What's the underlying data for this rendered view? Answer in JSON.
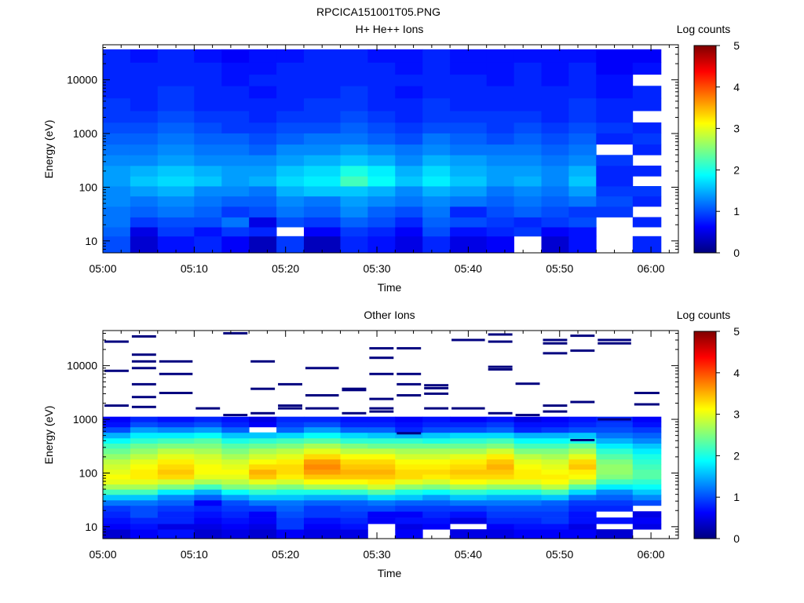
{
  "figure": {
    "title": "RPCICA151001T05.PNG"
  },
  "colormap": [
    "#00007f",
    "#0000ff",
    "#007fff",
    "#00ffff",
    "#7fff7f",
    "#ffff00",
    "#ff7f00",
    "#ff0000",
    "#7f0000"
  ],
  "chart_data": [
    {
      "type": "heatmap",
      "title": "H+ He++ Ions",
      "xlabel": "Time",
      "ylabel": "Energy (eV)",
      "yscale": "log",
      "ylim": [
        6,
        45000
      ],
      "xlim": [
        "05:00",
        "06:03"
      ],
      "x_ticks": [
        "05:00",
        "05:10",
        "05:20",
        "05:30",
        "05:40",
        "05:50",
        "06:00"
      ],
      "y_ticks": [
        10,
        100,
        1000,
        10000
      ],
      "y_tick_labels": [
        "10",
        "100",
        "1000",
        "10000"
      ],
      "colorbar": {
        "label": "Log counts",
        "range": [
          0,
          5
        ],
        "ticks": [
          "0",
          "1",
          "2",
          "3",
          "4",
          "5"
        ]
      },
      "time_bins": [
        "05:00",
        "05:03",
        "05:06",
        "05:10",
        "05:13",
        "05:16",
        "05:19",
        "05:22",
        "05:26",
        "05:29",
        "05:32",
        "05:35",
        "05:38",
        "05:42",
        "05:45",
        "05:48",
        "05:51",
        "05:54",
        "05:58"
      ],
      "energy_bands": [
        10,
        15,
        22,
        35,
        55,
        85,
        130,
        200,
        320,
        500,
        800,
        1300,
        2000,
        3500,
        6000,
        10000,
        16000,
        28000
      ],
      "log_counts": [
        [
          1.0,
          0.4,
          0.7,
          0.8,
          0.6,
          0.3,
          0.9,
          0.3,
          0.8,
          0.7,
          0.5,
          0.8,
          0.5,
          0.6,
          null,
          0.4,
          0.7,
          null,
          0.8
        ],
        [
          1.1,
          0.5,
          0.9,
          0.7,
          0.9,
          0.8,
          null,
          0.6,
          0.9,
          0.8,
          0.6,
          1.0,
          0.7,
          0.8,
          0.9,
          0.6,
          0.7,
          null,
          null
        ],
        [
          1.2,
          0.9,
          1.0,
          1.0,
          1.2,
          0.5,
          1.0,
          0.9,
          1.1,
          1.0,
          0.8,
          1.1,
          1.0,
          0.9,
          0.8,
          0.9,
          1.0,
          null,
          0.8
        ],
        [
          1.2,
          1.1,
          1.2,
          1.1,
          0.9,
          1.0,
          1.2,
          1.1,
          1.3,
          1.1,
          1.0,
          1.2,
          0.8,
          1.0,
          1.1,
          1.0,
          0.9,
          0.9,
          null
        ],
        [
          1.3,
          1.2,
          1.3,
          1.2,
          1.1,
          1.1,
          1.3,
          1.2,
          1.4,
          1.3,
          1.2,
          1.3,
          1.2,
          1.1,
          1.2,
          1.1,
          1.2,
          1.0,
          0.8
        ],
        [
          1.3,
          1.4,
          1.5,
          1.3,
          1.3,
          1.2,
          1.5,
          1.6,
          1.6,
          1.5,
          1.3,
          1.5,
          1.4,
          1.2,
          1.3,
          1.2,
          1.4,
          0.9,
          0.9
        ],
        [
          1.4,
          1.6,
          1.7,
          1.6,
          1.4,
          1.5,
          1.7,
          1.8,
          2.2,
          1.9,
          1.6,
          1.8,
          1.6,
          1.4,
          1.5,
          1.3,
          1.6,
          0.8,
          null
        ],
        [
          1.4,
          1.5,
          1.6,
          1.5,
          1.4,
          1.4,
          1.6,
          1.7,
          2.0,
          1.8,
          1.5,
          1.7,
          1.5,
          1.4,
          1.4,
          1.3,
          1.5,
          0.8,
          0.8
        ],
        [
          1.3,
          1.3,
          1.4,
          1.3,
          1.3,
          1.3,
          1.4,
          1.5,
          1.6,
          1.5,
          1.3,
          1.5,
          1.4,
          1.3,
          1.3,
          1.2,
          1.3,
          0.9,
          null
        ],
        [
          1.2,
          1.2,
          1.3,
          1.2,
          1.2,
          1.1,
          1.3,
          1.3,
          1.4,
          1.3,
          1.2,
          1.3,
          1.2,
          1.2,
          1.2,
          1.1,
          1.2,
          null,
          0.8
        ],
        [
          1.1,
          1.1,
          1.2,
          1.1,
          1.1,
          1.0,
          1.1,
          1.2,
          1.2,
          1.1,
          1.0,
          1.2,
          1.1,
          1.0,
          1.1,
          1.0,
          1.1,
          0.8,
          0.9
        ],
        [
          1.0,
          1.0,
          1.1,
          1.0,
          0.9,
          0.9,
          1.0,
          1.0,
          1.1,
          1.0,
          0.9,
          1.0,
          1.0,
          0.9,
          1.0,
          0.9,
          1.0,
          0.9,
          0.8
        ],
        [
          0.9,
          0.9,
          1.0,
          0.9,
          0.9,
          0.8,
          0.9,
          0.9,
          1.0,
          0.9,
          0.8,
          0.9,
          0.9,
          0.9,
          0.9,
          0.8,
          0.9,
          0.8,
          null
        ],
        [
          0.9,
          0.8,
          0.9,
          0.8,
          0.8,
          0.8,
          0.8,
          0.9,
          0.9,
          0.8,
          0.8,
          0.9,
          0.8,
          0.8,
          0.8,
          0.8,
          0.9,
          0.8,
          0.8
        ],
        [
          0.8,
          0.8,
          0.9,
          0.8,
          0.8,
          0.7,
          0.8,
          0.8,
          0.9,
          0.8,
          0.7,
          0.8,
          0.8,
          0.8,
          0.8,
          0.8,
          0.8,
          0.7,
          0.8
        ],
        [
          0.8,
          0.8,
          0.8,
          0.8,
          0.7,
          0.8,
          0.8,
          0.8,
          0.8,
          0.8,
          0.8,
          0.8,
          0.8,
          0.7,
          0.8,
          0.7,
          0.8,
          0.7,
          null
        ],
        [
          0.8,
          0.8,
          0.8,
          0.8,
          0.7,
          0.7,
          0.8,
          0.8,
          0.8,
          0.8,
          0.7,
          0.8,
          0.7,
          0.7,
          0.8,
          0.7,
          0.8,
          0.6,
          0.7
        ],
        [
          0.8,
          0.7,
          0.8,
          0.7,
          0.6,
          0.7,
          0.7,
          0.8,
          0.8,
          0.7,
          0.7,
          0.8,
          0.7,
          0.7,
          0.7,
          0.7,
          0.7,
          0.6,
          0.6
        ]
      ]
    },
    {
      "type": "heatmap",
      "title": "Other Ions",
      "xlabel": "Time",
      "ylabel": "Energy (eV)",
      "yscale": "log",
      "ylim": [
        6,
        45000
      ],
      "xlim": [
        "05:00",
        "06:03"
      ],
      "x_ticks": [
        "05:00",
        "05:10",
        "05:20",
        "05:30",
        "05:40",
        "05:50",
        "06:00"
      ],
      "y_ticks": [
        10,
        100,
        1000,
        10000
      ],
      "y_tick_labels": [
        "10",
        "100",
        "1000",
        "10000"
      ],
      "colorbar": {
        "label": "Log counts",
        "range": [
          0,
          5
        ],
        "ticks": [
          "0",
          "1",
          "2",
          "3",
          "4",
          "5"
        ]
      },
      "time_bins": [
        "05:00",
        "05:03",
        "05:06",
        "05:10",
        "05:13",
        "05:16",
        "05:19",
        "05:22",
        "05:26",
        "05:29",
        "05:32",
        "05:35",
        "05:38",
        "05:42",
        "05:45",
        "05:48",
        "05:51",
        "05:54",
        "05:58"
      ],
      "energy_bands": [
        8,
        10,
        13,
        17,
        22,
        28,
        35,
        45,
        55,
        70,
        85,
        105,
        130,
        165,
        200,
        260,
        320,
        400,
        500,
        650,
        800,
        1000
      ],
      "log_counts": [
        [
          0.4,
          0.6,
          0.7,
          0.4,
          0.5,
          0.4,
          0.6,
          0.5,
          0.5,
          null,
          0.6,
          null,
          0.5,
          0.5,
          0.6,
          0.6,
          0.6,
          0.4,
          null
        ],
        [
          0.6,
          0.7,
          0.5,
          0.5,
          0.6,
          0.5,
          0.9,
          0.6,
          0.7,
          null,
          0.5,
          0.6,
          null,
          0.6,
          0.7,
          0.7,
          0.5,
          null,
          0.5
        ],
        [
          0.7,
          0.8,
          0.8,
          0.6,
          0.7,
          0.6,
          0.9,
          0.7,
          0.8,
          0.6,
          0.7,
          0.7,
          0.5,
          0.8,
          0.8,
          0.9,
          0.7,
          0.7,
          0.6
        ],
        [
          0.8,
          1.0,
          0.8,
          0.7,
          0.8,
          0.6,
          1.0,
          0.9,
          0.9,
          0.6,
          0.6,
          0.8,
          0.7,
          0.9,
          0.9,
          0.9,
          0.7,
          null,
          0.5
        ],
        [
          0.9,
          1.0,
          0.9,
          0.8,
          0.9,
          0.9,
          1.1,
          0.9,
          1.0,
          1.0,
          0.9,
          0.9,
          0.9,
          1.0,
          1.0,
          1.0,
          0.8,
          0.8,
          null
        ],
        [
          1.2,
          1.2,
          1.1,
          0.6,
          1.0,
          1.2,
          1.2,
          1.1,
          1.1,
          1.2,
          1.1,
          1.1,
          1.2,
          1.2,
          1.2,
          1.1,
          0.9,
          0.9,
          1.0
        ],
        [
          1.6,
          1.6,
          1.3,
          1.1,
          1.4,
          1.6,
          1.6,
          1.5,
          1.5,
          1.7,
          1.6,
          1.4,
          1.6,
          1.5,
          1.5,
          1.6,
          1.2,
          1.1,
          1.3
        ],
        [
          2.2,
          2.2,
          1.8,
          1.5,
          1.9,
          2.1,
          2.0,
          2.0,
          2.1,
          2.3,
          2.0,
          1.9,
          2.1,
          2.0,
          2.0,
          2.2,
          1.7,
          1.3,
          1.6
        ],
        [
          2.7,
          2.7,
          2.5,
          2.2,
          2.5,
          2.6,
          2.5,
          2.7,
          2.7,
          2.9,
          2.6,
          2.5,
          2.7,
          2.6,
          2.6,
          2.8,
          2.3,
          1.8,
          1.9
        ],
        [
          3.0,
          3.0,
          2.9,
          2.7,
          2.8,
          3.0,
          2.9,
          3.1,
          3.1,
          3.2,
          3.0,
          2.9,
          3.1,
          3.0,
          3.0,
          3.1,
          2.8,
          2.2,
          2.1
        ],
        [
          3.1,
          3.2,
          3.3,
          3.0,
          3.0,
          3.4,
          3.2,
          3.4,
          3.4,
          3.4,
          3.3,
          3.2,
          3.3,
          3.3,
          3.2,
          3.2,
          3.1,
          2.5,
          2.3
        ],
        [
          3.0,
          3.2,
          3.4,
          3.1,
          3.1,
          3.5,
          3.3,
          3.6,
          3.5,
          3.5,
          3.3,
          3.3,
          3.4,
          3.4,
          3.2,
          3.1,
          3.2,
          2.6,
          2.3
        ],
        [
          2.9,
          3.1,
          3.3,
          3.1,
          3.0,
          3.3,
          3.3,
          3.7,
          3.4,
          3.4,
          3.2,
          3.2,
          3.3,
          3.5,
          3.1,
          3.0,
          3.4,
          2.6,
          2.2
        ],
        [
          2.8,
          3.0,
          3.2,
          3.0,
          2.9,
          3.1,
          3.2,
          3.6,
          3.3,
          3.3,
          3.1,
          3.1,
          3.2,
          3.4,
          3.0,
          2.9,
          3.3,
          2.5,
          2.1
        ],
        [
          2.6,
          2.8,
          3.0,
          2.9,
          2.7,
          2.9,
          3.0,
          3.3,
          3.1,
          3.1,
          2.9,
          2.9,
          3.0,
          3.2,
          2.8,
          2.7,
          3.0,
          2.3,
          2.0
        ],
        [
          2.4,
          2.6,
          2.8,
          2.7,
          2.5,
          2.7,
          2.8,
          3.0,
          2.8,
          2.8,
          2.7,
          2.7,
          2.7,
          2.9,
          2.5,
          2.5,
          2.7,
          2.1,
          1.8
        ],
        [
          2.2,
          2.4,
          2.5,
          2.5,
          2.3,
          2.4,
          2.5,
          2.7,
          2.5,
          2.4,
          2.4,
          2.4,
          2.4,
          2.5,
          2.2,
          2.2,
          2.4,
          1.8,
          1.6
        ],
        [
          1.9,
          2.1,
          2.2,
          2.3,
          2.0,
          2.1,
          2.2,
          2.3,
          2.1,
          2.1,
          2.1,
          2.0,
          2.1,
          2.2,
          1.9,
          1.9,
          2.0,
          1.5,
          1.3
        ],
        [
          1.5,
          1.8,
          1.8,
          1.9,
          1.6,
          1.6,
          1.7,
          1.9,
          1.7,
          1.6,
          1.5,
          1.6,
          1.7,
          1.7,
          1.5,
          1.5,
          1.6,
          1.2,
          1.1
        ],
        [
          1.0,
          1.4,
          1.3,
          1.4,
          1.1,
          null,
          1.1,
          1.4,
          1.1,
          1.1,
          0.8,
          1.0,
          1.0,
          1.1,
          0.8,
          0.9,
          1.0,
          1.0,
          0.9
        ],
        [
          0.7,
          1.0,
          0.9,
          1.0,
          0.8,
          0.6,
          0.9,
          1.0,
          0.8,
          0.8,
          0.7,
          0.8,
          0.8,
          0.9,
          0.7,
          0.7,
          0.8,
          0.9,
          0.7
        ],
        [
          0.6,
          0.8,
          0.7,
          0.8,
          0.7,
          0.5,
          0.8,
          0.8,
          0.7,
          0.7,
          0.6,
          0.7,
          0.6,
          0.7,
          0.5,
          0.6,
          0.7,
          0.8,
          0.6
        ]
      ],
      "sparse_lines": [
        {
          "time": "05:00",
          "energies": [
            28000,
            8000,
            1800
          ]
        },
        {
          "time": "05:03",
          "energies": [
            35000,
            16000,
            12000,
            9000,
            4500,
            2600,
            1700
          ]
        },
        {
          "time": "05:06",
          "energies": [
            12000,
            7000,
            3100
          ]
        },
        {
          "time": "05:10",
          "energies": [
            1600
          ]
        },
        {
          "time": "05:13",
          "energies": [
            40000,
            1200
          ]
        },
        {
          "time": "05:16",
          "energies": [
            12000,
            3700,
            1300
          ]
        },
        {
          "time": "05:19",
          "energies": [
            4500,
            1800,
            1600
          ]
        },
        {
          "time": "05:22",
          "energies": [
            9000,
            2800,
            1600
          ]
        },
        {
          "time": "05:26",
          "energies": [
            3700,
            3500,
            1300
          ]
        },
        {
          "time": "05:29",
          "energies": [
            21000,
            14000,
            7000,
            2400,
            1600,
            1400
          ]
        },
        {
          "time": "05:32",
          "energies": [
            21000,
            7000,
            4500,
            2800,
            550
          ]
        },
        {
          "time": "05:35",
          "energies": [
            4300,
            3800,
            3000,
            1600
          ]
        },
        {
          "time": "05:38",
          "energies": [
            30000,
            1600
          ]
        },
        {
          "time": "05:42",
          "energies": [
            38000,
            28000,
            9500,
            8500,
            1300
          ]
        },
        {
          "time": "05:45",
          "energies": [
            4600,
            1200
          ]
        },
        {
          "time": "05:48",
          "energies": [
            30000,
            26000,
            17000,
            1800,
            1400
          ]
        },
        {
          "time": "05:51",
          "energies": [
            36000,
            19000,
            2100,
            410
          ]
        },
        {
          "time": "05:54",
          "energies": [
            30000,
            26000,
            1000
          ]
        },
        {
          "time": "05:58",
          "energies": [
            3100,
            1900
          ]
        }
      ]
    }
  ]
}
